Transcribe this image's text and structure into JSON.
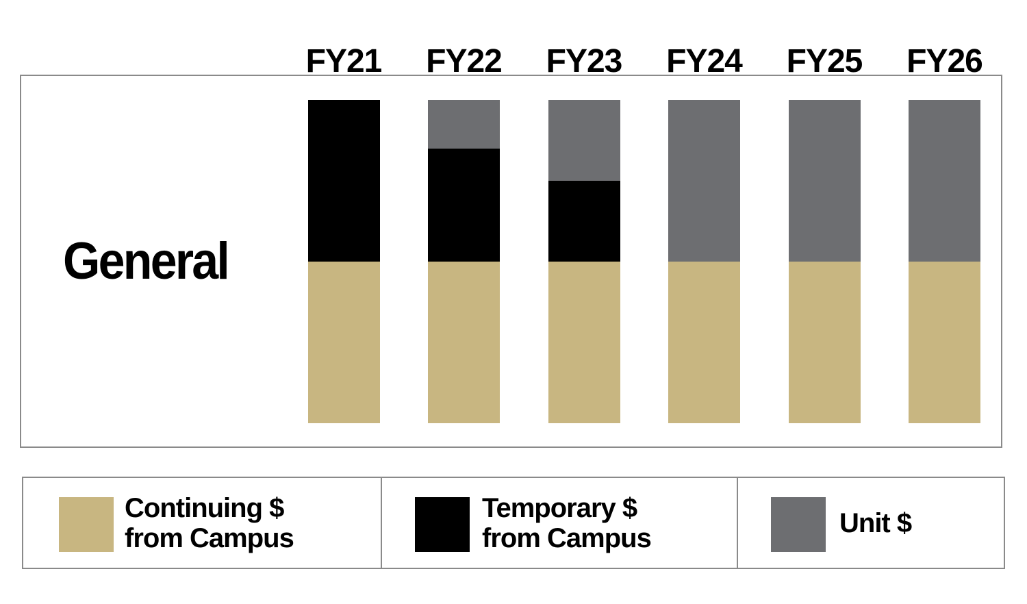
{
  "chart_data": {
    "type": "bar",
    "stacked": true,
    "row_label": "General",
    "categories": [
      "FY21",
      "FY22",
      "FY23",
      "FY24",
      "FY25",
      "FY26"
    ],
    "series": [
      {
        "name": "Continuing $ from Campus",
        "color": "#c8b681",
        "values": [
          0.5,
          0.5,
          0.5,
          0.5,
          0.5,
          0.5
        ]
      },
      {
        "name": "Temporary $ from Campus",
        "color": "#000000",
        "values": [
          0.5,
          0.35,
          0.25,
          0,
          0,
          0
        ]
      },
      {
        "name": "Unit $",
        "color": "#6d6e71",
        "values": [
          0,
          0.15,
          0.25,
          0.5,
          0.5,
          0.5
        ]
      }
    ],
    "ylim": [
      0,
      1
    ],
    "grid": false,
    "legend_position": "bottom"
  },
  "legend": {
    "items": [
      {
        "label": "Continuing $\nfrom Campus",
        "color": "#c8b681"
      },
      {
        "label": "Temporary $\nfrom Campus",
        "color": "#000000"
      },
      {
        "label": "Unit $",
        "color": "#6d6e71"
      }
    ]
  }
}
